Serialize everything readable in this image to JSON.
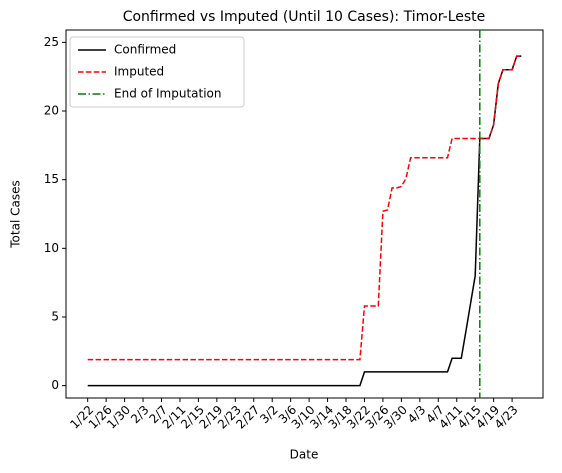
{
  "chart_data": {
    "type": "line",
    "title": "Confirmed vs Imputed (Until 10 Cases): Timor-Leste",
    "xlabel": "Date",
    "ylabel": "Total Cases",
    "categories": [
      "1/22",
      null,
      null,
      null,
      "1/26",
      null,
      null,
      null,
      "1/30",
      null,
      null,
      null,
      "2/3",
      null,
      null,
      null,
      "2/7",
      null,
      null,
      null,
      "2/11",
      null,
      null,
      null,
      "2/15",
      null,
      null,
      null,
      "2/19",
      null,
      null,
      null,
      "2/23",
      null,
      null,
      null,
      "2/27",
      null,
      null,
      null,
      "3/2",
      null,
      null,
      null,
      "3/6",
      null,
      null,
      null,
      "3/10",
      null,
      null,
      null,
      "3/14",
      null,
      null,
      null,
      "3/18",
      null,
      null,
      null,
      "3/22",
      null,
      null,
      null,
      "3/26",
      null,
      null,
      null,
      "3/30",
      null,
      null,
      null,
      "4/3",
      null,
      null,
      null,
      "4/7",
      null,
      null,
      null,
      "4/11",
      null,
      null,
      null,
      "4/15",
      null,
      null,
      null,
      "4/19",
      null,
      null,
      null,
      "4/23",
      null,
      null
    ],
    "series": [
      {
        "name": "Confirmed",
        "color": "#000000",
        "dash": "solid",
        "values": [
          0,
          0,
          0,
          0,
          0,
          0,
          0,
          0,
          0,
          0,
          0,
          0,
          0,
          0,
          0,
          0,
          0,
          0,
          0,
          0,
          0,
          0,
          0,
          0,
          0,
          0,
          0,
          0,
          0,
          0,
          0,
          0,
          0,
          0,
          0,
          0,
          0,
          0,
          0,
          0,
          0,
          0,
          0,
          0,
          0,
          0,
          0,
          0,
          0,
          0,
          0,
          0,
          0,
          0,
          0,
          0,
          0,
          0,
          0,
          0,
          1,
          1,
          1,
          1,
          1,
          1,
          1,
          1,
          1,
          1,
          1,
          1,
          1,
          1,
          1,
          1,
          1,
          1,
          1,
          2,
          2,
          2,
          4,
          6,
          8,
          18,
          18,
          18,
          19,
          22,
          23,
          23,
          23,
          24,
          24
        ]
      },
      {
        "name": "Imputed",
        "color": "#ff0000",
        "dash": "dashed",
        "values": [
          1.9,
          1.9,
          1.9,
          1.9,
          1.9,
          1.9,
          1.9,
          1.9,
          1.9,
          1.9,
          1.9,
          1.9,
          1.9,
          1.9,
          1.9,
          1.9,
          1.9,
          1.9,
          1.9,
          1.9,
          1.9,
          1.9,
          1.9,
          1.9,
          1.9,
          1.9,
          1.9,
          1.9,
          1.9,
          1.9,
          1.9,
          1.9,
          1.9,
          1.9,
          1.9,
          1.9,
          1.9,
          1.9,
          1.9,
          1.9,
          1.9,
          1.9,
          1.9,
          1.9,
          1.9,
          1.9,
          1.9,
          1.9,
          1.9,
          1.9,
          1.9,
          1.9,
          1.9,
          1.9,
          1.9,
          1.9,
          1.9,
          1.9,
          1.9,
          1.9,
          5.8,
          5.8,
          5.8,
          5.8,
          12.7,
          12.8,
          14.4,
          14.4,
          14.5,
          15.1,
          16.6,
          16.6,
          16.6,
          16.6,
          16.6,
          16.6,
          16.6,
          16.6,
          16.6,
          18,
          18,
          18,
          18,
          18,
          18,
          18,
          18,
          18,
          19,
          22,
          23,
          23,
          23,
          24,
          24
        ]
      }
    ],
    "vline": {
      "name": "End of Imputation",
      "color": "#008000",
      "dash": "dashdot",
      "x": 85
    },
    "ylim": [
      -0.9,
      25.9
    ],
    "yticks": [
      0,
      5,
      10,
      15,
      20,
      25
    ],
    "grid": false,
    "legend": "upper left"
  }
}
